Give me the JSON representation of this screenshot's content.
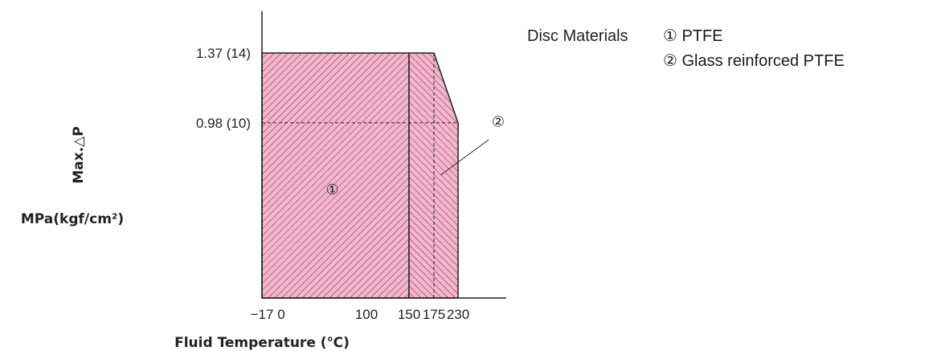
{
  "legend": {
    "title": "Disc Materials",
    "items": [
      {
        "marker": "①",
        "label": "PTFE"
      },
      {
        "marker": "②",
        "label": "Glass reinforced PTFE"
      }
    ]
  },
  "colors": {
    "fill": "#f3b6cc",
    "hatch": "#7a1f3d",
    "axis": "#222222"
  },
  "chart_data": {
    "type": "area",
    "title": "",
    "xlabel": "Fluid Temperature (℃)",
    "ylabel": "Max.△P",
    "ylabel_unit": "MPa(kgf/cm²)",
    "x_ticks": [
      "−17",
      "0",
      "100",
      "150",
      "175",
      "230"
    ],
    "y_ticks": [
      "1.37 (14)",
      "0.98 (10)"
    ],
    "series": [
      {
        "marker": "①",
        "name": "PTFE",
        "points": [
          [
            -17,
            0
          ],
          [
            -17,
            1.37
          ],
          [
            150,
            1.37
          ],
          [
            150,
            0
          ]
        ]
      },
      {
        "marker": "②",
        "name": "Glass reinforced PTFE",
        "points": [
          [
            150,
            0
          ],
          [
            150,
            1.37
          ],
          [
            175,
            1.37
          ],
          [
            230,
            0.98
          ],
          [
            230,
            0
          ]
        ]
      }
    ],
    "reference_lines": [
      {
        "type": "horizontal",
        "y": 0.98,
        "style": "dashed"
      },
      {
        "type": "vertical",
        "x": 175,
        "style": "dashed"
      }
    ],
    "grid": false
  }
}
